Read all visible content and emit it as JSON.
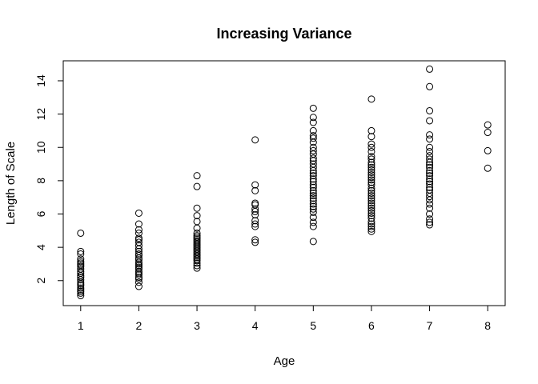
{
  "chart_data": {
    "type": "scatter",
    "title": "Increasing Variance",
    "xlabel": "Age",
    "ylabel": "Length of Scale",
    "xlim": [
      0.7,
      8.3
    ],
    "ylim": [
      0.5,
      15.2
    ],
    "xticks": [
      1,
      2,
      3,
      4,
      5,
      6,
      7,
      8
    ],
    "yticks": [
      2,
      4,
      6,
      8,
      10,
      12,
      14
    ],
    "box": true,
    "grid": false,
    "marker": "open-circle",
    "points": [
      [
        1,
        4.85
      ],
      [
        1,
        3.75
      ],
      [
        1,
        3.6
      ],
      [
        1,
        3.3
      ],
      [
        1,
        3.15
      ],
      [
        1,
        3.05
      ],
      [
        1,
        2.95
      ],
      [
        1,
        2.85
      ],
      [
        1,
        2.7
      ],
      [
        1,
        2.55
      ],
      [
        1,
        2.45
      ],
      [
        1,
        2.3
      ],
      [
        1,
        2.2
      ],
      [
        1,
        2.05
      ],
      [
        1,
        1.9
      ],
      [
        1,
        1.8
      ],
      [
        1,
        1.7
      ],
      [
        1,
        1.55
      ],
      [
        1,
        1.45
      ],
      [
        1,
        1.35
      ],
      [
        1,
        1.25
      ],
      [
        1,
        1.1
      ],
      [
        2,
        6.05
      ],
      [
        2,
        5.4
      ],
      [
        2,
        5.05
      ],
      [
        2,
        4.85
      ],
      [
        2,
        4.55
      ],
      [
        2,
        4.45
      ],
      [
        2,
        4.3
      ],
      [
        2,
        4.1
      ],
      [
        2,
        3.9
      ],
      [
        2,
        3.75
      ],
      [
        2,
        3.6
      ],
      [
        2,
        3.5
      ],
      [
        2,
        3.35
      ],
      [
        2,
        3.25
      ],
      [
        2,
        3.1
      ],
      [
        2,
        3.0
      ],
      [
        2,
        2.9
      ],
      [
        2,
        2.8
      ],
      [
        2,
        2.7
      ],
      [
        2,
        2.55
      ],
      [
        2,
        2.45
      ],
      [
        2,
        2.35
      ],
      [
        2,
        2.2
      ],
      [
        2,
        2.1
      ],
      [
        2,
        1.9
      ],
      [
        2,
        1.65
      ],
      [
        3,
        8.3
      ],
      [
        3,
        7.65
      ],
      [
        3,
        6.35
      ],
      [
        3,
        5.9
      ],
      [
        3,
        5.55
      ],
      [
        3,
        5.15
      ],
      [
        3,
        4.85
      ],
      [
        3,
        4.7
      ],
      [
        3,
        4.6
      ],
      [
        3,
        4.5
      ],
      [
        3,
        4.4
      ],
      [
        3,
        4.3
      ],
      [
        3,
        4.2
      ],
      [
        3,
        4.1
      ],
      [
        3,
        4.0
      ],
      [
        3,
        3.9
      ],
      [
        3,
        3.8
      ],
      [
        3,
        3.7
      ],
      [
        3,
        3.6
      ],
      [
        3,
        3.5
      ],
      [
        3,
        3.4
      ],
      [
        3,
        3.3
      ],
      [
        3,
        3.2
      ],
      [
        3,
        3.05
      ],
      [
        3,
        2.9
      ],
      [
        3,
        2.75
      ],
      [
        4,
        10.45
      ],
      [
        4,
        7.75
      ],
      [
        4,
        7.4
      ],
      [
        4,
        6.65
      ],
      [
        4,
        6.55
      ],
      [
        4,
        6.3
      ],
      [
        4,
        6.15
      ],
      [
        4,
        5.95
      ],
      [
        4,
        5.6
      ],
      [
        4,
        5.4
      ],
      [
        4,
        5.25
      ],
      [
        4,
        4.45
      ],
      [
        4,
        4.3
      ],
      [
        5,
        12.35
      ],
      [
        5,
        11.8
      ],
      [
        5,
        11.5
      ],
      [
        5,
        11.0
      ],
      [
        5,
        10.7
      ],
      [
        5,
        10.55
      ],
      [
        5,
        10.3
      ],
      [
        5,
        10.0
      ],
      [
        5,
        9.8
      ],
      [
        5,
        9.6
      ],
      [
        5,
        9.35
      ],
      [
        5,
        9.2
      ],
      [
        5,
        9.0
      ],
      [
        5,
        8.8
      ],
      [
        5,
        8.6
      ],
      [
        5,
        8.45
      ],
      [
        5,
        8.3
      ],
      [
        5,
        8.1
      ],
      [
        5,
        7.95
      ],
      [
        5,
        7.75
      ],
      [
        5,
        7.6
      ],
      [
        5,
        7.4
      ],
      [
        5,
        7.25
      ],
      [
        5,
        7.1
      ],
      [
        5,
        6.95
      ],
      [
        5,
        6.8
      ],
      [
        5,
        6.6
      ],
      [
        5,
        6.45
      ],
      [
        5,
        6.3
      ],
      [
        5,
        6.1
      ],
      [
        5,
        5.8
      ],
      [
        5,
        5.5
      ],
      [
        5,
        5.25
      ],
      [
        5,
        4.35
      ],
      [
        6,
        12.9
      ],
      [
        6,
        11.0
      ],
      [
        6,
        10.65
      ],
      [
        6,
        10.2
      ],
      [
        6,
        10.0
      ],
      [
        6,
        9.75
      ],
      [
        6,
        9.45
      ],
      [
        6,
        9.3
      ],
      [
        6,
        9.1
      ],
      [
        6,
        8.95
      ],
      [
        6,
        8.8
      ],
      [
        6,
        8.65
      ],
      [
        6,
        8.5
      ],
      [
        6,
        8.35
      ],
      [
        6,
        8.2
      ],
      [
        6,
        8.05
      ],
      [
        6,
        7.9
      ],
      [
        6,
        7.75
      ],
      [
        6,
        7.55
      ],
      [
        6,
        7.4
      ],
      [
        6,
        7.25
      ],
      [
        6,
        7.1
      ],
      [
        6,
        6.95
      ],
      [
        6,
        6.8
      ],
      [
        6,
        6.65
      ],
      [
        6,
        6.5
      ],
      [
        6,
        6.35
      ],
      [
        6,
        6.2
      ],
      [
        6,
        6.05
      ],
      [
        6,
        5.9
      ],
      [
        6,
        5.75
      ],
      [
        6,
        5.55
      ],
      [
        6,
        5.4
      ],
      [
        6,
        5.25
      ],
      [
        6,
        5.1
      ],
      [
        6,
        4.95
      ],
      [
        7,
        14.7
      ],
      [
        7,
        13.65
      ],
      [
        7,
        12.2
      ],
      [
        7,
        11.6
      ],
      [
        7,
        10.75
      ],
      [
        7,
        10.5
      ],
      [
        7,
        10.0
      ],
      [
        7,
        9.75
      ],
      [
        7,
        9.5
      ],
      [
        7,
        9.3
      ],
      [
        7,
        9.1
      ],
      [
        7,
        8.95
      ],
      [
        7,
        8.8
      ],
      [
        7,
        8.6
      ],
      [
        7,
        8.45
      ],
      [
        7,
        8.3
      ],
      [
        7,
        8.1
      ],
      [
        7,
        7.95
      ],
      [
        7,
        7.8
      ],
      [
        7,
        7.6
      ],
      [
        7,
        7.45
      ],
      [
        7,
        7.25
      ],
      [
        7,
        7.05
      ],
      [
        7,
        6.85
      ],
      [
        7,
        6.6
      ],
      [
        7,
        6.35
      ],
      [
        7,
        6.0
      ],
      [
        7,
        5.7
      ],
      [
        7,
        5.5
      ],
      [
        7,
        5.35
      ],
      [
        8,
        11.35
      ],
      [
        8,
        10.9
      ],
      [
        8,
        9.8
      ],
      [
        8,
        8.75
      ]
    ]
  }
}
